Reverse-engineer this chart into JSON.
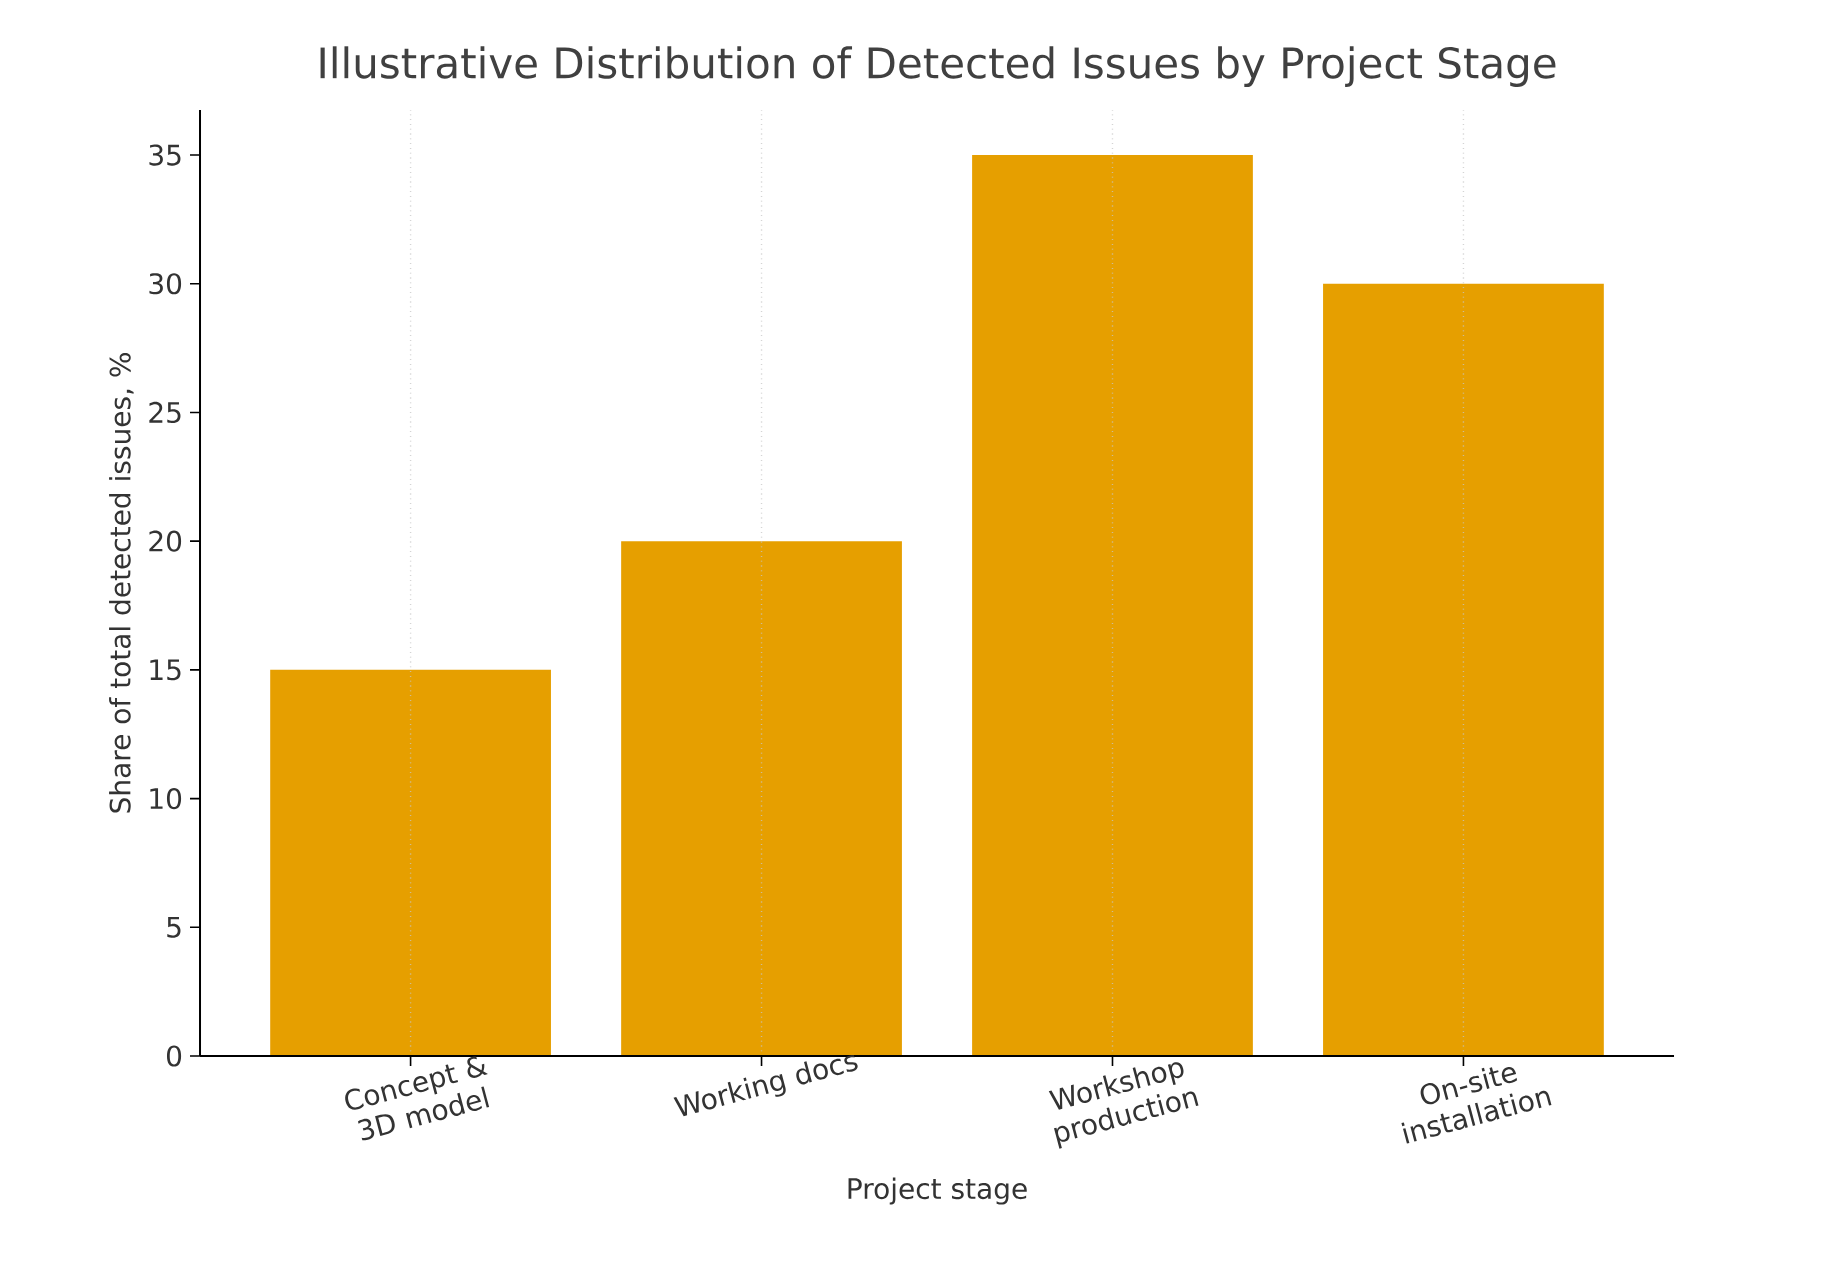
{
  "chart_data": {
    "type": "bar",
    "title": "Illustrative Distribution of Detected Issues by Project Stage",
    "xlabel": "Project stage",
    "ylabel": "Share of total detected issues, %",
    "categories": [
      "Concept & 3D model",
      "Working docs",
      "Workshop production",
      "On-site installation"
    ],
    "values": [
      15,
      20,
      35,
      30
    ],
    "color": "#e69f00",
    "ylim": [
      0,
      36.75
    ],
    "yticks": [
      0,
      5,
      10,
      15,
      20,
      25,
      30,
      35
    ],
    "grid": "x"
  }
}
